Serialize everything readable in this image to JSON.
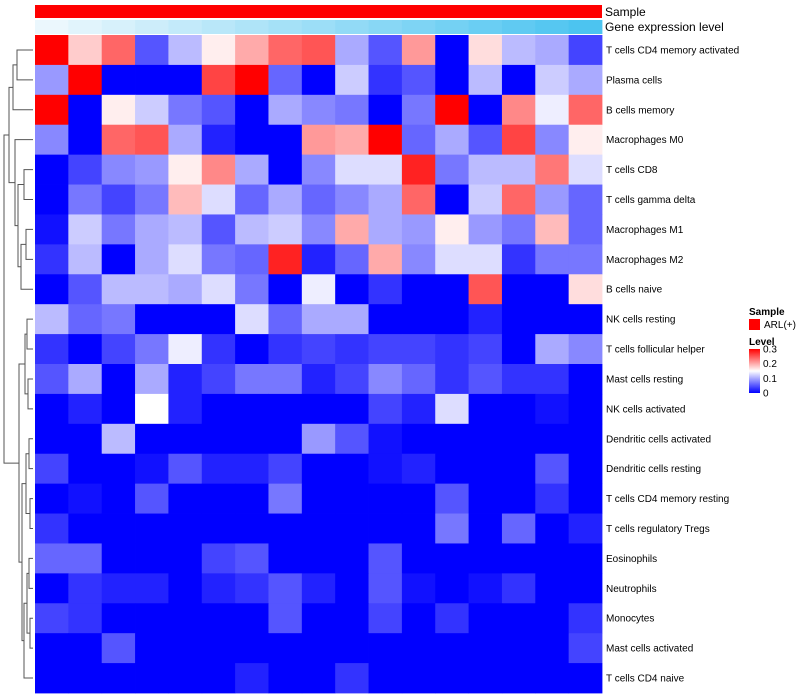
{
  "chart_data": {
    "type": "heatmap",
    "title": "",
    "annotations": {
      "sample_label": "Sample",
      "expression_label": "Gene expression level"
    },
    "rows": [
      "T cells CD4 memory activated",
      "Plasma cells",
      "B cells memory",
      "Macrophages M0",
      "T cells CD8",
      "T cells gamma delta",
      "Macrophages M1",
      "Macrophages M2",
      "B cells naive",
      "NK cells resting",
      "T cells follicular helper",
      "Mast cells resting",
      "NK cells activated",
      "Dendritic cells activated",
      "Dendritic cells resting",
      "T cells CD4 memory resting",
      "T cells regulatory  Tregs",
      "Eosinophils",
      "Neutrophils",
      "Monocytes",
      "Mast cells activated",
      "T cells CD4 naive"
    ],
    "columns": 17,
    "expression_values": [
      0.02,
      0.08,
      0.14,
      0.2,
      0.26,
      0.32,
      0.38,
      0.44,
      0.5,
      0.56,
      0.62,
      0.68,
      0.74,
      0.8,
      0.86,
      0.92,
      0.98
    ],
    "values": [
      [
        0.3,
        0.18,
        0.24,
        0.05,
        0.11,
        0.16,
        0.2,
        0.24,
        0.25,
        0.1,
        0.05,
        0.21,
        0.0,
        0.17,
        0.11,
        0.1,
        0.04
      ],
      [
        0.09,
        0.3,
        0.0,
        0.0,
        0.0,
        0.26,
        0.3,
        0.06,
        0.0,
        0.12,
        0.03,
        0.05,
        0.0,
        0.11,
        0.0,
        0.12,
        0.1
      ],
      [
        0.3,
        0.0,
        0.16,
        0.12,
        0.07,
        0.05,
        0.0,
        0.1,
        0.08,
        0.07,
        0.0,
        0.07,
        0.3,
        0.0,
        0.22,
        0.14,
        0.24
      ],
      [
        0.08,
        0.0,
        0.24,
        0.25,
        0.1,
        0.02,
        0.0,
        0.0,
        0.21,
        0.2,
        0.3,
        0.06,
        0.1,
        0.05,
        0.26,
        0.08,
        0.16
      ],
      [
        0.0,
        0.04,
        0.08,
        0.09,
        0.16,
        0.22,
        0.1,
        0.0,
        0.08,
        0.13,
        0.13,
        0.28,
        0.07,
        0.11,
        0.11,
        0.23,
        0.13
      ],
      [
        0.0,
        0.07,
        0.04,
        0.07,
        0.19,
        0.13,
        0.06,
        0.1,
        0.06,
        0.08,
        0.1,
        0.24,
        0.0,
        0.12,
        0.24,
        0.09,
        0.06
      ],
      [
        0.01,
        0.12,
        0.07,
        0.1,
        0.11,
        0.05,
        0.11,
        0.12,
        0.08,
        0.2,
        0.1,
        0.09,
        0.16,
        0.09,
        0.07,
        0.19,
        0.06
      ],
      [
        0.03,
        0.11,
        0.0,
        0.1,
        0.13,
        0.07,
        0.06,
        0.28,
        0.02,
        0.06,
        0.2,
        0.08,
        0.13,
        0.13,
        0.03,
        0.07,
        0.07
      ],
      [
        0.0,
        0.05,
        0.11,
        0.11,
        0.1,
        0.13,
        0.07,
        0.0,
        0.14,
        0.0,
        0.03,
        0.0,
        0.0,
        0.25,
        0.0,
        0.0,
        0.17
      ],
      [
        0.11,
        0.06,
        0.07,
        0.0,
        0.0,
        0.0,
        0.13,
        0.06,
        0.1,
        0.1,
        0.0,
        0.0,
        0.0,
        0.02,
        0.0,
        0.0,
        0.0
      ],
      [
        0.03,
        0.0,
        0.04,
        0.07,
        0.14,
        0.03,
        0.0,
        0.03,
        0.04,
        0.03,
        0.04,
        0.04,
        0.03,
        0.04,
        0.0,
        0.1,
        0.08
      ],
      [
        0.05,
        0.1,
        0.0,
        0.1,
        0.02,
        0.04,
        0.07,
        0.07,
        0.02,
        0.04,
        0.08,
        0.06,
        0.03,
        0.05,
        0.03,
        0.03,
        0.0
      ],
      [
        0.0,
        0.02,
        0.0,
        0.15,
        0.02,
        0.0,
        0.0,
        0.0,
        0.0,
        0.0,
        0.04,
        0.02,
        0.13,
        0.0,
        0.0,
        0.01,
        0.0
      ],
      [
        0.0,
        0.0,
        0.11,
        0.0,
        0.0,
        0.0,
        0.0,
        0.0,
        0.09,
        0.05,
        0.01,
        0.0,
        0.0,
        0.0,
        0.0,
        0.0,
        0.0
      ],
      [
        0.04,
        0.0,
        0.0,
        0.01,
        0.05,
        0.02,
        0.02,
        0.04,
        0.0,
        0.0,
        0.01,
        0.02,
        0.0,
        0.0,
        0.0,
        0.05,
        0.0
      ],
      [
        0.0,
        0.01,
        0.0,
        0.05,
        0.0,
        0.0,
        0.0,
        0.07,
        0.0,
        0.0,
        0.0,
        0.0,
        0.05,
        0.0,
        0.0,
        0.03,
        0.0
      ],
      [
        0.03,
        0.0,
        0.0,
        0.0,
        0.0,
        0.0,
        0.0,
        0.0,
        0.0,
        0.0,
        0.0,
        0.0,
        0.07,
        0.0,
        0.06,
        0.0,
        0.02
      ],
      [
        0.06,
        0.06,
        0.0,
        0.0,
        0.0,
        0.04,
        0.05,
        0.0,
        0.0,
        0.0,
        0.05,
        0.0,
        0.0,
        0.0,
        0.0,
        0.0,
        0.0
      ],
      [
        0.0,
        0.03,
        0.02,
        0.02,
        0.0,
        0.02,
        0.03,
        0.05,
        0.02,
        0.0,
        0.05,
        0.01,
        0.0,
        0.01,
        0.03,
        0.0,
        0.0
      ],
      [
        0.04,
        0.03,
        0.0,
        0.0,
        0.0,
        0.0,
        0.0,
        0.05,
        0.0,
        0.0,
        0.04,
        0.0,
        0.03,
        0.0,
        0.0,
        0.0,
        0.03
      ],
      [
        0.0,
        0.0,
        0.05,
        0.0,
        0.0,
        0.0,
        0.0,
        0.0,
        0.0,
        0.0,
        0.0,
        0.0,
        0.0,
        0.0,
        0.0,
        0.0,
        0.04
      ],
      [
        0.0,
        0.0,
        0.0,
        0.0,
        0.0,
        0.0,
        0.02,
        0.0,
        0.0,
        0.03,
        0.0,
        0.0,
        0.0,
        0.0,
        0.0,
        0.0,
        0.0
      ]
    ],
    "color_scale": {
      "min": 0,
      "mid": 0.15,
      "max": 0.3,
      "low_color": "#0000ff",
      "mid_color": "#ffffff",
      "high_color": "#ff0000"
    },
    "legend": {
      "position": "right",
      "sample_title": "Sample",
      "sample_entry": "ARL(+)",
      "sample_color": "#ff0000",
      "level_title": "Level",
      "level_ticks": [
        0.3,
        0.2,
        0.1,
        0
      ],
      "level_tick_labels": [
        "0.3",
        "0.2",
        "0.1",
        "0"
      ]
    },
    "sample_color": "#ff0000",
    "expression_colors": {
      "low": "#eef8fd",
      "high": "#49c3f0"
    },
    "row_dendrogram": true
  }
}
